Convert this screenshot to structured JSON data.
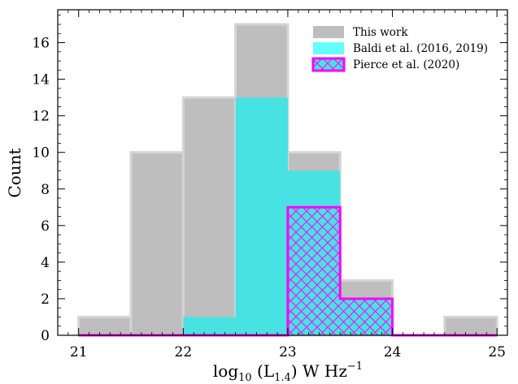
{
  "chart_data": {
    "type": "bar",
    "xlabel_main": "log",
    "xlabel_sub10": "10",
    "xlabel_paren_open": " (L",
    "xlabel_sub14": "1.4",
    "xlabel_after": ") W Hz",
    "xlabel_sup": "−1",
    "ylabel": "Count",
    "xlim": [
      20.8,
      25.1
    ],
    "ylim": [
      0,
      17.8
    ],
    "x_ticks": [
      21,
      22,
      23,
      24,
      25
    ],
    "y_ticks": [
      0,
      2,
      4,
      6,
      8,
      10,
      12,
      14,
      16
    ],
    "bin_edges": [
      21.0,
      21.5,
      22.0,
      22.5,
      23.0,
      23.5,
      24.0,
      24.5,
      25.0
    ],
    "series": [
      {
        "name": "This work",
        "values": [
          1,
          10,
          13,
          17,
          10,
          3,
          0,
          1
        ],
        "color": "#bebebe"
      },
      {
        "name": "Baldi et al. (2016, 2019)",
        "values": [
          0,
          0,
          1,
          13,
          9,
          2,
          0,
          0
        ],
        "color": "#48e2e2"
      },
      {
        "name": "Pierce et al. (2020)",
        "values": [
          0,
          0,
          0,
          0,
          7,
          2,
          0,
          0
        ],
        "color": "#ff00ff",
        "hatch": "cross"
      }
    ],
    "legend_position": "top-right"
  }
}
